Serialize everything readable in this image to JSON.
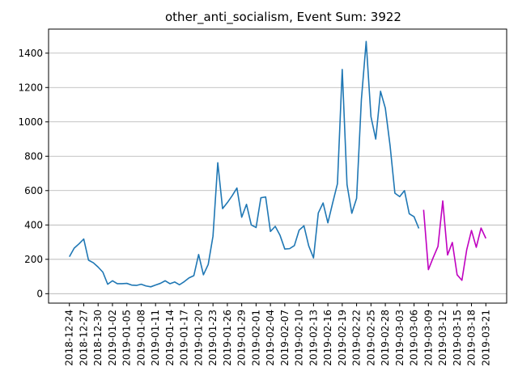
{
  "chart_data": {
    "type": "line",
    "title": "other_anti_socialism, Event Sum: 3922",
    "xlabel": "",
    "ylabel": "",
    "ylim": [
      -55,
      1540
    ],
    "yticks": [
      0,
      200,
      400,
      600,
      800,
      1000,
      1200,
      1400
    ],
    "ytick_labels": [
      "0",
      "200",
      "400",
      "600",
      "800",
      "1000",
      "1200",
      "1400"
    ],
    "xticks": [
      "2018-12-24",
      "2018-12-27",
      "2018-12-30",
      "2019-01-02",
      "2019-01-05",
      "2019-01-08",
      "2019-01-11",
      "2019-01-14",
      "2019-01-17",
      "2019-01-20",
      "2019-01-23",
      "2019-01-26",
      "2019-01-29",
      "2019-02-01",
      "2019-02-04",
      "2019-02-07",
      "2019-02-10",
      "2019-02-13",
      "2019-02-16",
      "2019-02-19",
      "2019-02-22",
      "2019-02-25",
      "2019-02-28",
      "2019-03-03",
      "2019-03-06",
      "2019-03-09",
      "2019-03-12",
      "2019-03-15",
      "2019-03-18",
      "2019-03-21"
    ],
    "grid": "horizontal",
    "series": [
      {
        "color": "#1f77b4",
        "x": [
          "2018-12-24",
          "2018-12-25",
          "2018-12-26",
          "2018-12-27",
          "2018-12-28",
          "2018-12-29",
          "2018-12-30",
          "2018-12-31",
          "2019-01-01",
          "2019-01-02",
          "2019-01-03",
          "2019-01-04",
          "2019-01-05",
          "2019-01-06",
          "2019-01-07",
          "2019-01-08",
          "2019-01-09",
          "2019-01-10",
          "2019-01-11",
          "2019-01-12",
          "2019-01-13",
          "2019-01-14",
          "2019-01-15",
          "2019-01-16",
          "2019-01-17",
          "2019-01-18",
          "2019-01-19",
          "2019-01-20",
          "2019-01-21",
          "2019-01-22",
          "2019-01-23",
          "2019-01-24",
          "2019-01-25",
          "2019-01-26",
          "2019-01-27",
          "2019-01-28",
          "2019-01-29",
          "2019-01-30",
          "2019-01-31",
          "2019-02-01",
          "2019-02-02",
          "2019-02-03",
          "2019-02-04",
          "2019-02-05",
          "2019-02-06",
          "2019-02-07",
          "2019-02-08",
          "2019-02-09",
          "2019-02-10",
          "2019-02-11",
          "2019-02-12",
          "2019-02-13",
          "2019-02-14",
          "2019-02-15",
          "2019-02-16",
          "2019-02-17",
          "2019-02-18",
          "2019-02-19",
          "2019-02-20",
          "2019-02-21",
          "2019-02-22",
          "2019-02-23",
          "2019-02-24",
          "2019-02-25",
          "2019-02-26",
          "2019-02-27",
          "2019-02-28",
          "2019-03-01",
          "2019-03-02",
          "2019-03-03",
          "2019-03-04",
          "2019-03-05",
          "2019-03-06",
          "2019-03-07",
          "2019-03-08"
        ],
        "values": [
          215,
          265,
          290,
          318,
          195,
          180,
          155,
          125,
          55,
          75,
          58,
          58,
          60,
          50,
          48,
          55,
          45,
          40,
          50,
          60,
          75,
          58,
          68,
          52,
          70,
          92,
          105,
          228,
          110,
          170,
          335,
          762,
          495,
          530,
          570,
          615,
          445,
          520,
          400,
          385,
          558,
          563,
          362,
          392,
          340,
          260,
          262,
          280,
          370,
          395,
          278,
          208,
          470,
          528,
          412,
          528,
          640,
          1305,
          635,
          468,
          555,
          1130,
          1468,
          1030,
          900,
          1178,
          1080,
          860,
          585,
          565,
          600,
          465,
          448,
          380,
          null
        ]
      },
      {
        "color": "#c000c0",
        "x": [
          "2019-03-08",
          "2019-03-09",
          "2019-03-10",
          "2019-03-11",
          "2019-03-12",
          "2019-03-13",
          "2019-03-14",
          "2019-03-15",
          "2019-03-16",
          "2019-03-17",
          "2019-03-18",
          "2019-03-19",
          "2019-03-20",
          "2019-03-21"
        ],
        "values": [
          488,
          140,
          210,
          275,
          540,
          225,
          298,
          110,
          78,
          255,
          368,
          270,
          382,
          322
        ]
      }
    ]
  }
}
